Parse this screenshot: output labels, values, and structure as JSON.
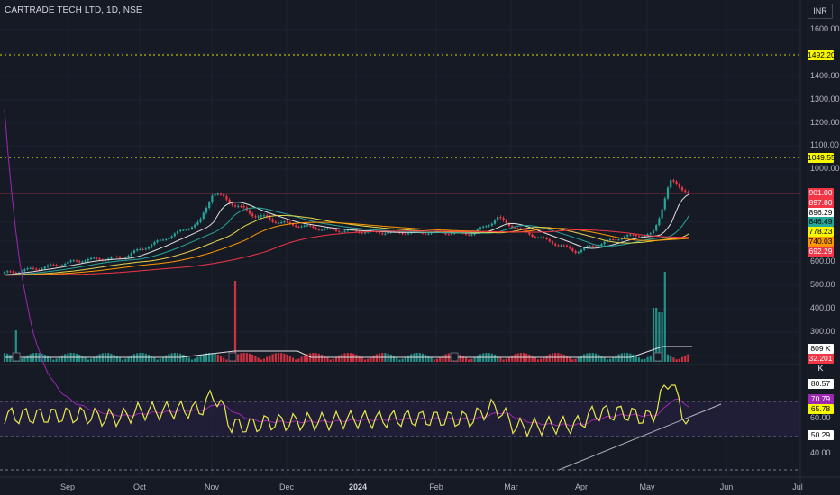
{
  "header": {
    "title": "CARTRADE TECH LTD, 1D, NSE",
    "currency": "INR"
  },
  "price_axis": {
    "ticks": [
      "1600.00",
      "1400.00",
      "1300.00",
      "1200.00",
      "1100.00",
      "1000.00",
      "600.00",
      "500.00",
      "400.00",
      "300.00"
    ],
    "badges": [
      {
        "label": "1492.20",
        "bg": "#f7f700",
        "fg": "#000000"
      },
      {
        "label": "1049.55",
        "bg": "#f7f700",
        "fg": "#000000"
      },
      {
        "label": "901.00",
        "bg": "#f23645",
        "fg": "#ffffff"
      },
      {
        "label": "897.80",
        "bg": "#f23645",
        "fg": "#ffffff"
      },
      {
        "label": "896.29",
        "bg": "#ffffff",
        "fg": "#000000"
      },
      {
        "label": "846.49",
        "bg": "#26a69a",
        "fg": "#000000"
      },
      {
        "label": "778.23",
        "bg": "#f7f700",
        "fg": "#000000"
      },
      {
        "label": "740.03",
        "bg": "#ff9800",
        "fg": "#000000"
      },
      {
        "label": "692.29",
        "bg": "#f23645",
        "fg": "#ffffff"
      },
      {
        "label": "809 K",
        "bg": "#ffffff",
        "fg": "#000000"
      },
      {
        "label": "32.201 K",
        "bg": "#f23645",
        "fg": "#ffffff"
      }
    ]
  },
  "rsi_axis": {
    "ticks": [
      "60.00",
      "40.00"
    ],
    "badges": [
      {
        "label": "80.57",
        "bg": "#ffffff",
        "fg": "#000000"
      },
      {
        "label": "70.79",
        "bg": "#9c27b0",
        "fg": "#ffffff"
      },
      {
        "label": "65.78",
        "bg": "#f7f700",
        "fg": "#000000"
      },
      {
        "label": "50.29",
        "bg": "#ffffff",
        "fg": "#000000"
      }
    ]
  },
  "time_axis": [
    "Sep",
    "Oct",
    "Nov",
    "Dec",
    "2024",
    "Feb",
    "Mar",
    "Apr",
    "May",
    "Jun",
    "Jul"
  ],
  "chart_data": {
    "type": "line",
    "title": "CARTRADE TECH LTD, 1D, NSE",
    "x_period": [
      "2023-08",
      "2024-07"
    ],
    "close_approx": [
      [
        "2023-08-20",
        545
      ],
      [
        "2023-09-05",
        575
      ],
      [
        "2023-09-20",
        610
      ],
      [
        "2023-10-05",
        620
      ],
      [
        "2023-10-20",
        700
      ],
      [
        "2023-11-05",
        800
      ],
      [
        "2023-11-10",
        905
      ],
      [
        "2023-11-25",
        830
      ],
      [
        "2023-12-10",
        790
      ],
      [
        "2023-12-25",
        760
      ],
      [
        "2024-01-15",
        745
      ],
      [
        "2024-02-05",
        745
      ],
      [
        "2024-02-20",
        740
      ],
      [
        "2024-03-01",
        815
      ],
      [
        "2024-03-15",
        730
      ],
      [
        "2024-04-01",
        650
      ],
      [
        "2024-04-20",
        725
      ],
      [
        "2024-05-01",
        735
      ],
      [
        "2024-05-08",
        950
      ],
      [
        "2024-05-16",
        901
      ]
    ],
    "horizontal_levels": {
      "dotted_yellow": [
        1492.2,
        1049.55
      ],
      "red_line": 901.0
    },
    "moving_averages": {
      "white": 896.29,
      "green": 846.49,
      "yellow": 778.23,
      "orange": 740.03,
      "red": 692.29
    },
    "volume": {
      "max_label": "809 K",
      "last_label": "32.201 K"
    },
    "rsi": {
      "rsi_last": 65.78,
      "ma_last": 70.79,
      "levels": [
        80.57,
        50.29
      ]
    }
  }
}
